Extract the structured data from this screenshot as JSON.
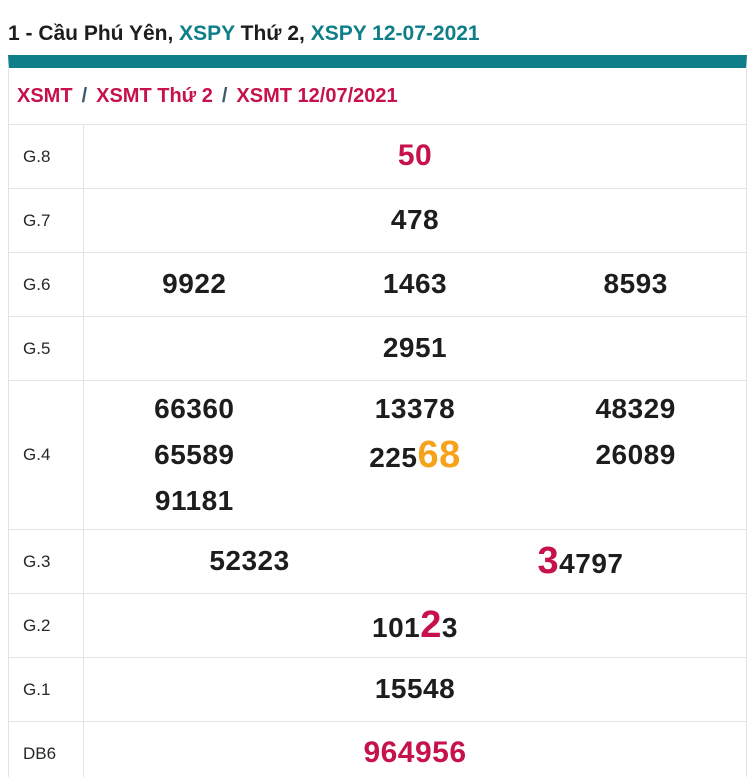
{
  "title": {
    "segments": [
      {
        "text": "1 - Cầu Phú Yên, ",
        "style": "dark",
        "link": false
      },
      {
        "text": "XSPY",
        "style": "teal",
        "link": true
      },
      {
        "text": " Thứ 2, ",
        "style": "dark",
        "link": false
      },
      {
        "text": "XSPY 12-07-2021",
        "style": "teal",
        "link": true
      }
    ]
  },
  "breadcrumb": {
    "separator": "/",
    "items": [
      "XSMT",
      "XSMT Thứ 2",
      "XSMT 12/07/2021"
    ]
  },
  "results_table": {
    "rows": [
      {
        "label": "G.8",
        "columns": 1,
        "emphasis": true,
        "cells": [
          [
            {
              "text": "50",
              "color": "crimson"
            }
          ]
        ]
      },
      {
        "label": "G.7",
        "columns": 1,
        "cells": [
          [
            {
              "text": "478"
            }
          ]
        ]
      },
      {
        "label": "G.6",
        "columns": 3,
        "cells": [
          [
            {
              "text": "9922"
            }
          ],
          [
            {
              "text": "1463"
            }
          ],
          [
            {
              "text": "8593"
            }
          ]
        ]
      },
      {
        "label": "G.5",
        "columns": 1,
        "cells": [
          [
            {
              "text": "2951"
            }
          ]
        ]
      },
      {
        "label": "G.4",
        "columns": 3,
        "tall": true,
        "cells": [
          [
            {
              "text": "66360"
            }
          ],
          [
            {
              "text": "13378"
            }
          ],
          [
            {
              "text": "48329"
            }
          ],
          [
            {
              "text": "65589"
            }
          ],
          [
            {
              "text": "225"
            },
            {
              "text": "68",
              "color": "orange",
              "big": true
            }
          ],
          [
            {
              "text": "26089"
            }
          ],
          [
            {
              "text": "91181"
            }
          ]
        ]
      },
      {
        "label": "G.3",
        "columns": 2,
        "cells": [
          [
            {
              "text": "52323"
            }
          ],
          [
            {
              "text": "3",
              "color": "crimson",
              "big": true
            },
            {
              "text": "4797"
            }
          ]
        ]
      },
      {
        "label": "G.2",
        "columns": 1,
        "cells": [
          [
            {
              "text": "101"
            },
            {
              "text": "2",
              "color": "crimson",
              "big": true
            },
            {
              "text": "3"
            }
          ]
        ]
      },
      {
        "label": "G.1",
        "columns": 1,
        "cells": [
          [
            {
              "text": "15548"
            }
          ]
        ]
      },
      {
        "label": "DB6",
        "columns": 1,
        "emphasis": true,
        "cells": [
          [
            {
              "text": "964956",
              "color": "crimson"
            }
          ]
        ]
      }
    ]
  },
  "colors": {
    "teal": "#0e7e88",
    "crimson": "#c6114a",
    "orange": "#f7a21b",
    "text": "#1d1d1f",
    "border": "#e3e3e3"
  }
}
